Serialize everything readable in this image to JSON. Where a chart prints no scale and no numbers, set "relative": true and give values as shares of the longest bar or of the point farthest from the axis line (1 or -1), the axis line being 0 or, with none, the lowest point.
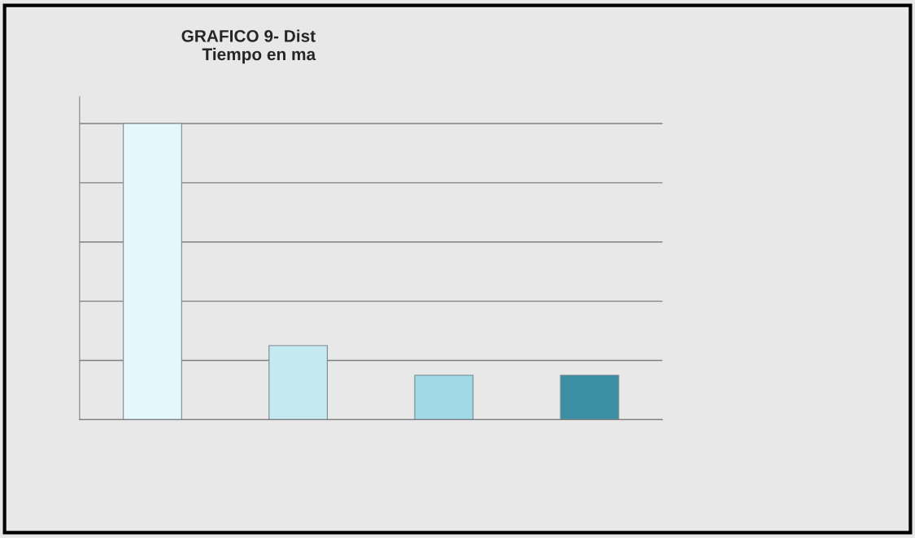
{
  "chart_data": {
    "type": "bar",
    "title": "GRAFICO 9- Dist\nTiempo en ma",
    "relative": true,
    "categories": [
      null,
      null,
      null,
      null
    ],
    "values": [
      1,
      0.25,
      0.15,
      0.15
    ],
    "colors": [
      "#e4f8fb",
      "#c4e9f1",
      "#a0d9e6",
      "#3b8fa5"
    ],
    "grid": "y"
  }
}
